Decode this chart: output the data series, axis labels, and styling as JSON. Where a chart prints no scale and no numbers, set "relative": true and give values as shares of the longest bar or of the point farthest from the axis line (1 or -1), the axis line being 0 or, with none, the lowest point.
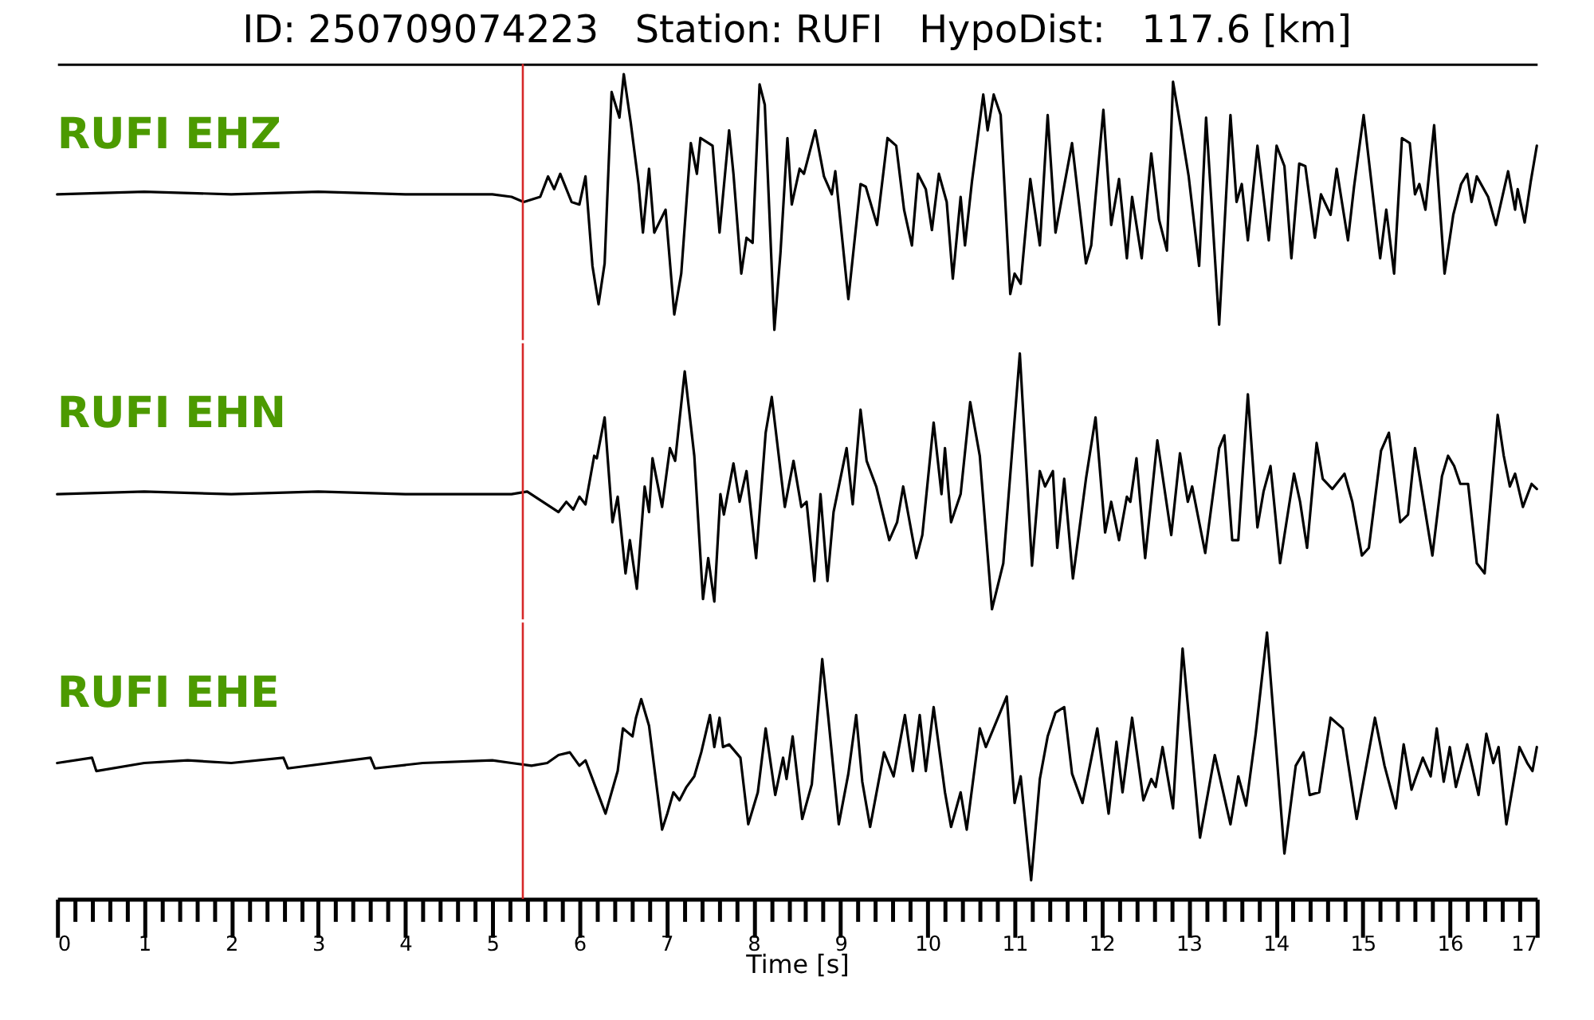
{
  "chart_data": [
    {
      "type": "line",
      "title": "ID: 250709074223   Station: RUFI   HypoDist:   117.6 [km]",
      "relative": true,
      "xlim": [
        0,
        17
      ],
      "tick_labels": false,
      "ref_lines": [
        {
          "axis": "x",
          "value": 5.35,
          "color": "#d62728"
        }
      ],
      "series": [
        {
          "name": "RUFI EHZ",
          "color": "#000000",
          "x": [
            0,
            1,
            2,
            3,
            4,
            5,
            5.22,
            5.36,
            5.55,
            5.64,
            5.71,
            5.78,
            5.91,
            6.0,
            6.07,
            6.15,
            6.22,
            6.29,
            6.37,
            6.46,
            6.51,
            6.59,
            6.68,
            6.73,
            6.8,
            6.86,
            6.99,
            7.09,
            7.17,
            7.28,
            7.35,
            7.39,
            7.53,
            7.61,
            7.72,
            7.77,
            7.86,
            7.92,
            7.99,
            8.07,
            8.13,
            8.24,
            8.31,
            8.39,
            8.44,
            8.53,
            8.58,
            8.71,
            8.81,
            8.9,
            8.94,
            9.09,
            9.23,
            9.29,
            9.42,
            9.54,
            9.64,
            9.73,
            9.82,
            9.89,
            9.98,
            10.05,
            10.13,
            10.22,
            10.29,
            10.38,
            10.43,
            10.51,
            10.64,
            10.69,
            10.76,
            10.84,
            10.95,
            11.0,
            11.07,
            11.18,
            11.29,
            11.38,
            11.47,
            11.66,
            11.82,
            11.88,
            12.02,
            12.11,
            12.2,
            12.29,
            12.35,
            12.46,
            12.57,
            12.66,
            12.75,
            12.82,
            12.91,
            13.0,
            13.12,
            13.2,
            13.35,
            13.48,
            13.55,
            13.61,
            13.68,
            13.79,
            13.92,
            14.01,
            14.1,
            14.18,
            14.27,
            14.34,
            14.45,
            14.52,
            14.63,
            14.7,
            14.83,
            14.9,
            15.01,
            15.2,
            15.27,
            15.36,
            15.45,
            15.54,
            15.6,
            15.65,
            15.72,
            15.82,
            15.94,
            16.04,
            16.13,
            16.2,
            16.25,
            16.31,
            16.44,
            16.53,
            16.67,
            16.75,
            16.78,
            16.86,
            16.93,
            17.0
          ],
          "values": [
            0.53,
            0.54,
            0.53,
            0.54,
            0.53,
            0.53,
            0.52,
            0.5,
            0.52,
            0.6,
            0.55,
            0.61,
            0.5,
            0.49,
            0.6,
            0.25,
            0.1,
            0.26,
            0.93,
            0.83,
            1.0,
            0.81,
            0.57,
            0.38,
            0.63,
            0.38,
            0.47,
            0.06,
            0.22,
            0.73,
            0.61,
            0.75,
            0.72,
            0.38,
            0.78,
            0.61,
            0.22,
            0.36,
            0.34,
            0.96,
            0.88,
            0,
            0.3,
            0.75,
            0.49,
            0.63,
            0.61,
            0.78,
            0.6,
            0.53,
            0.62,
            0.12,
            0.57,
            0.56,
            0.41,
            0.75,
            0.72,
            0.47,
            0.33,
            0.61,
            0.55,
            0.39,
            0.61,
            0.5,
            0.2,
            0.52,
            0.33,
            0.58,
            0.92,
            0.78,
            0.92,
            0.84,
            0.14,
            0.22,
            0.18,
            0.59,
            0.33,
            0.84,
            0.38,
            0.73,
            0.26,
            0.33,
            0.86,
            0.41,
            0.59,
            0.28,
            0.52,
            0.28,
            0.69,
            0.43,
            0.31,
            0.97,
            0.79,
            0.6,
            0.25,
            0.83,
            0.02,
            0.84,
            0.5,
            0.57,
            0.35,
            0.72,
            0.35,
            0.72,
            0.64,
            0.28,
            0.65,
            0.64,
            0.36,
            0.53,
            0.45,
            0.63,
            0.35,
            0.56,
            0.84,
            0.28,
            0.47,
            0.22,
            0.75,
            0.73,
            0.53,
            0.57,
            0.47,
            0.8,
            0.22,
            0.45,
            0.57,
            0.61,
            0.5,
            0.6,
            0.52,
            0.41,
            0.62,
            0.47,
            0.55,
            0.42,
            0.58,
            0.72
          ]
        }
      ]
    },
    {
      "type": "line",
      "relative": true,
      "xlim": [
        0,
        17
      ],
      "tick_labels": false,
      "ref_lines": [
        {
          "axis": "x",
          "value": 5.35,
          "color": "#d62728"
        }
      ],
      "series": [
        {
          "name": "RUFI EHN",
          "color": "#000000",
          "x": [
            0,
            1,
            2,
            3,
            4,
            5,
            5.22,
            5.4,
            5.76,
            5.85,
            5.93,
            6.0,
            6.07,
            6.17,
            6.2,
            6.29,
            6.38,
            6.44,
            6.53,
            6.58,
            6.66,
            6.75,
            6.8,
            6.84,
            6.95,
            7.04,
            7.1,
            7.21,
            7.32,
            7.42,
            7.48,
            7.55,
            7.62,
            7.66,
            7.77,
            7.84,
            7.92,
            8.03,
            8.14,
            8.21,
            8.36,
            8.46,
            8.55,
            8.61,
            8.7,
            8.77,
            8.85,
            8.92,
            9.07,
            9.14,
            9.23,
            9.3,
            9.41,
            9.56,
            9.65,
            9.72,
            9.87,
            9.94,
            10.07,
            10.16,
            10.2,
            10.27,
            10.38,
            10.49,
            10.6,
            10.74,
            10.87,
            11.06,
            11.2,
            11.29,
            11.35,
            11.44,
            11.49,
            11.57,
            11.67,
            11.82,
            11.93,
            12.04,
            12.11,
            12.2,
            12.29,
            12.33,
            12.4,
            12.5,
            12.64,
            12.8,
            12.9,
            12.99,
            13.04,
            13.19,
            13.35,
            13.41,
            13.5,
            13.57,
            13.68,
            13.79,
            13.86,
            13.94,
            14.05,
            14.21,
            14.28,
            14.36,
            14.47,
            14.54,
            14.65,
            14.79,
            14.88,
            14.99,
            15.07,
            15.21,
            15.3,
            15.43,
            15.52,
            15.6,
            15.8,
            15.91,
            15.98,
            16.05,
            16.12,
            16.21,
            16.31,
            16.4,
            16.55,
            16.62,
            16.69,
            16.75,
            16.84,
            16.94,
            17.0
          ],
          "values": [
            0.45,
            0.46,
            0.45,
            0.46,
            0.45,
            0.45,
            0.45,
            0.46,
            0.38,
            0.42,
            0.39,
            0.44,
            0.41,
            0.6,
            0.59,
            0.75,
            0.34,
            0.44,
            0.14,
            0.27,
            0.08,
            0.48,
            0.38,
            0.59,
            0.4,
            0.63,
            0.58,
            0.93,
            0.6,
            0.04,
            0.2,
            0.03,
            0.45,
            0.37,
            0.57,
            0.42,
            0.54,
            0.2,
            0.69,
            0.83,
            0.4,
            0.58,
            0.4,
            0.42,
            0.11,
            0.45,
            0.11,
            0.38,
            0.63,
            0.41,
            0.78,
            0.58,
            0.48,
            0.27,
            0.34,
            0.48,
            0.2,
            0.29,
            0.73,
            0.45,
            0.63,
            0.34,
            0.45,
            0.81,
            0.6,
            0,
            0.18,
            1.0,
            0.17,
            0.54,
            0.48,
            0.54,
            0.24,
            0.51,
            0.12,
            0.51,
            0.75,
            0.3,
            0.42,
            0.27,
            0.44,
            0.42,
            0.59,
            0.2,
            0.66,
            0.29,
            0.61,
            0.42,
            0.48,
            0.22,
            0.63,
            0.68,
            0.27,
            0.27,
            0.84,
            0.32,
            0.46,
            0.56,
            0.18,
            0.53,
            0.42,
            0.24,
            0.65,
            0.51,
            0.47,
            0.53,
            0.42,
            0.21,
            0.24,
            0.62,
            0.69,
            0.34,
            0.37,
            0.63,
            0.21,
            0.52,
            0.6,
            0.56,
            0.49,
            0.49,
            0.18,
            0.14,
            0.76,
            0.6,
            0.48,
            0.53,
            0.4,
            0.49,
            0.47
          ]
        }
      ]
    },
    {
      "type": "line",
      "relative": true,
      "xlim": [
        0,
        17
      ],
      "tick_labels": "x",
      "xlabel": "Time [s]",
      "ref_lines": [
        {
          "axis": "x",
          "value": 5.35,
          "color": "#d62728"
        }
      ],
      "xticks": [
        0,
        {
          "value": 0.2,
          "label": null
        },
        {
          "value": 0.4,
          "label": null
        },
        {
          "value": 0.6,
          "label": null
        },
        {
          "value": 0.8,
          "label": null
        },
        1,
        {
          "value": 1.2,
          "label": null
        },
        {
          "value": 1.4,
          "label": null
        },
        {
          "value": 1.6,
          "label": null
        },
        {
          "value": 1.8,
          "label": null
        },
        2,
        {
          "value": 2.2,
          "label": null
        },
        {
          "value": 2.4,
          "label": null
        },
        {
          "value": 2.6,
          "label": null
        },
        {
          "value": 2.8,
          "label": null
        },
        3,
        {
          "value": 3.2,
          "label": null
        },
        {
          "value": 3.4,
          "label": null
        },
        {
          "value": 3.6,
          "label": null
        },
        {
          "value": 3.8,
          "label": null
        },
        4,
        {
          "value": 4.2,
          "label": null
        },
        {
          "value": 4.4,
          "label": null
        },
        {
          "value": 4.6,
          "label": null
        },
        {
          "value": 4.8,
          "label": null
        },
        5,
        {
          "value": 5.2,
          "label": null
        },
        {
          "value": 5.4,
          "label": null
        },
        {
          "value": 5.6,
          "label": null
        },
        {
          "value": 5.8,
          "label": null
        },
        6,
        {
          "value": 6.2,
          "label": null
        },
        {
          "value": 6.4,
          "label": null
        },
        {
          "value": 6.6,
          "label": null
        },
        {
          "value": 6.8,
          "label": null
        },
        7,
        {
          "value": 7.2,
          "label": null
        },
        {
          "value": 7.4,
          "label": null
        },
        {
          "value": 7.6,
          "label": null
        },
        {
          "value": 7.8,
          "label": null
        },
        8,
        {
          "value": 8.2,
          "label": null
        },
        {
          "value": 8.4,
          "label": null
        },
        {
          "value": 8.6,
          "label": null
        },
        {
          "value": 8.8,
          "label": null
        },
        9,
        {
          "value": 9.2,
          "label": null
        },
        {
          "value": 9.4,
          "label": null
        },
        {
          "value": 9.6,
          "label": null
        },
        {
          "value": 9.8,
          "label": null
        },
        10,
        {
          "value": 10.2,
          "label": null
        },
        {
          "value": 10.4,
          "label": null
        },
        {
          "value": 10.6,
          "label": null
        },
        {
          "value": 10.8,
          "label": null
        },
        11,
        {
          "value": 11.2,
          "label": null
        },
        {
          "value": 11.4,
          "label": null
        },
        {
          "value": 11.6,
          "label": null
        },
        {
          "value": 11.8,
          "label": null
        },
        12,
        {
          "value": 12.2,
          "label": null
        },
        {
          "value": 12.4,
          "label": null
        },
        {
          "value": 12.6,
          "label": null
        },
        {
          "value": 12.8,
          "label": null
        },
        13,
        {
          "value": 13.2,
          "label": null
        },
        {
          "value": 13.4,
          "label": null
        },
        {
          "value": 13.6,
          "label": null
        },
        {
          "value": 13.8,
          "label": null
        },
        14,
        {
          "value": 14.2,
          "label": null
        },
        {
          "value": 14.4,
          "label": null
        },
        {
          "value": 14.6,
          "label": null
        },
        {
          "value": 14.8,
          "label": null
        },
        15,
        {
          "value": 15.2,
          "label": null
        },
        {
          "value": 15.4,
          "label": null
        },
        {
          "value": 15.6,
          "label": null
        },
        {
          "value": 15.8,
          "label": null
        },
        16,
        {
          "value": 16.2,
          "label": null
        },
        {
          "value": 16.4,
          "label": null
        },
        {
          "value": 16.6,
          "label": null
        },
        {
          "value": 16.8,
          "label": null
        },
        17
      ],
      "series": [
        {
          "name": "RUFI EHE",
          "color": "#000000",
          "x": [
            0,
            0.4,
            0.45,
            1,
            1.5,
            2,
            2.6,
            2.65,
            3.6,
            3.65,
            4.2,
            5,
            5.22,
            5.45,
            5.63,
            5.76,
            5.89,
            6.0,
            6.07,
            6.22,
            6.3,
            6.44,
            6.5,
            6.61,
            6.65,
            6.71,
            6.8,
            6.95,
            7.01,
            7.08,
            7.15,
            7.23,
            7.32,
            7.4,
            7.5,
            7.55,
            7.61,
            7.65,
            7.72,
            7.85,
            7.94,
            8.05,
            8.14,
            8.25,
            8.34,
            8.38,
            8.45,
            8.56,
            8.67,
            8.79,
            8.86,
            8.98,
            9.09,
            9.18,
            9.25,
            9.34,
            9.5,
            9.61,
            9.74,
            9.83,
            9.91,
            9.98,
            10.07,
            10.2,
            10.27,
            10.38,
            10.45,
            10.6,
            10.67,
            10.91,
            11.0,
            11.07,
            11.19,
            11.29,
            11.38,
            11.47,
            11.57,
            11.66,
            11.78,
            11.95,
            12.08,
            12.17,
            12.24,
            12.35,
            12.48,
            12.57,
            12.62,
            12.7,
            12.82,
            12.93,
            13.13,
            13.3,
            13.48,
            13.57,
            13.66,
            13.77,
            13.9,
            14.1,
            14.23,
            14.32,
            14.39,
            14.5,
            14.63,
            14.77,
            14.93,
            15.14,
            15.25,
            15.38,
            15.47,
            15.56,
            15.69,
            15.78,
            15.85,
            15.93,
            16.0,
            16.07,
            16.2,
            16.33,
            16.42,
            16.5,
            16.56,
            16.65,
            16.8,
            16.89,
            16.95,
            17.0
          ],
          "values": [
            0.51,
            0.53,
            0.48,
            0.51,
            0.52,
            0.51,
            0.53,
            0.49,
            0.53,
            0.49,
            0.51,
            0.52,
            0.51,
            0.5,
            0.51,
            0.54,
            0.55,
            0.5,
            0.52,
            0.39,
            0.32,
            0.48,
            0.64,
            0.61,
            0.68,
            0.75,
            0.65,
            0.26,
            0.32,
            0.4,
            0.37,
            0.42,
            0.46,
            0.55,
            0.69,
            0.57,
            0.68,
            0.57,
            0.58,
            0.53,
            0.28,
            0.4,
            0.64,
            0.39,
            0.53,
            0.45,
            0.61,
            0.3,
            0.43,
            0.9,
            0.68,
            0.28,
            0.47,
            0.69,
            0.44,
            0.27,
            0.55,
            0.46,
            0.69,
            0.48,
            0.69,
            0.48,
            0.72,
            0.4,
            0.27,
            0.4,
            0.26,
            0.64,
            0.57,
            0.76,
            0.36,
            0.46,
            0.07,
            0.45,
            0.61,
            0.7,
            0.72,
            0.47,
            0.36,
            0.64,
            0.32,
            0.59,
            0.4,
            0.68,
            0.37,
            0.45,
            0.42,
            0.57,
            0.34,
            0.94,
            0.23,
            0.54,
            0.28,
            0.46,
            0.35,
            0.62,
            1.0,
            0.17,
            0.5,
            0.55,
            0.39,
            0.4,
            0.68,
            0.64,
            0.3,
            0.68,
            0.5,
            0.34,
            0.58,
            0.41,
            0.53,
            0.46,
            0.64,
            0.44,
            0.57,
            0.42,
            0.58,
            0.39,
            0.62,
            0.51,
            0.57,
            0.28,
            0.57,
            0.51,
            0.48,
            0.57
          ]
        }
      ]
    }
  ]
}
